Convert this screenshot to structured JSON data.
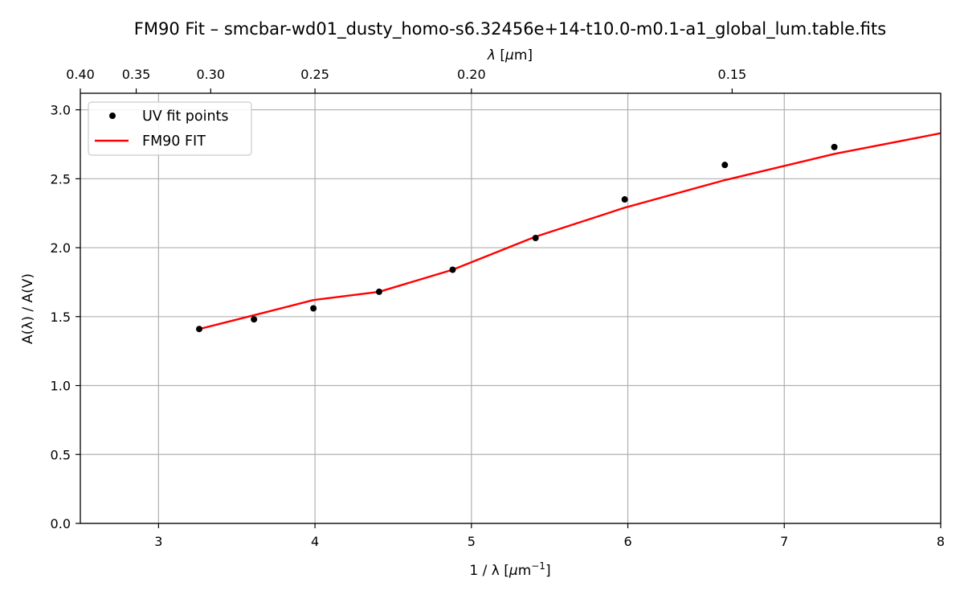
{
  "chart_data": {
    "type": "line",
    "title": "FM90 Fit – smcbar-wd01_dusty_homo-s6.32456e+14-t10.0-m0.1-a1_global_lum.table.fits",
    "xlabel": "1 / λ [",
    "xlabel_mu": "μ",
    "xlabel_unit": "m",
    "xlabel_sup": "−1",
    "xlabel_close": "]",
    "ylabel": "A(λ) / A(V)",
    "top_xlabel_lambda": "λ",
    "top_xlabel_open": " [",
    "top_xlabel_mu": "μ",
    "top_xlabel_unit": "m]",
    "xlim": [
      2.5,
      8
    ],
    "ylim": [
      0,
      3.12
    ],
    "grid": true,
    "legend_position": "upper-left",
    "x_ticks": [
      3,
      4,
      5,
      6,
      7,
      8
    ],
    "x_tick_labels": [
      "3",
      "4",
      "5",
      "6",
      "7",
      "8"
    ],
    "y_ticks": [
      0.0,
      0.5,
      1.0,
      1.5,
      2.0,
      2.5,
      3.0
    ],
    "y_tick_labels": [
      "0.0",
      "0.5",
      "1.0",
      "1.5",
      "2.0",
      "2.5",
      "3.0"
    ],
    "top_ticks_wavelength": [
      0.4,
      0.35,
      0.3,
      0.25,
      0.2,
      0.15
    ],
    "top_tick_labels": [
      "0.40",
      "0.35",
      "0.30",
      "0.25",
      "0.20",
      "0.15"
    ],
    "series": [
      {
        "name": "UV fit points",
        "kind": "scatter",
        "color": "#000000",
        "x": [
          3.26,
          3.61,
          3.99,
          4.41,
          4.88,
          5.41,
          5.98,
          6.62,
          7.32
        ],
        "y": [
          1.41,
          1.48,
          1.56,
          1.68,
          1.84,
          2.07,
          2.35,
          2.6,
          2.73
        ]
      },
      {
        "name": "FM90 FIT",
        "kind": "line",
        "color": "#ff0000",
        "x": [
          3.26,
          3.61,
          3.99,
          4.41,
          4.88,
          5.41,
          5.98,
          6.62,
          7.32,
          8.0
        ],
        "y": [
          1.41,
          1.51,
          1.62,
          1.68,
          1.84,
          2.08,
          2.29,
          2.49,
          2.68,
          2.83
        ]
      }
    ]
  }
}
